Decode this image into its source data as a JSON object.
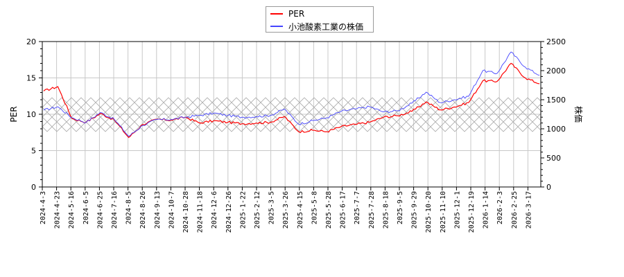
{
  "legend": {
    "items": [
      {
        "label": "PER",
        "color": "#ff0000"
      },
      {
        "label": "小池酸素工業の株価",
        "color": "#4444ff"
      }
    ]
  },
  "axes": {
    "left_title": "PER",
    "right_title": "株価",
    "left_ticks": [
      "0",
      "5",
      "10",
      "15",
      "20"
    ],
    "right_ticks": [
      "0",
      "500",
      "1000",
      "1500",
      "2000",
      "2500"
    ]
  },
  "chart_data": {
    "type": "line",
    "title": "",
    "xlabel": "",
    "ylabel": "PER",
    "ylabel_right": "株価",
    "ylim": [
      0,
      20
    ],
    "ylim_right": [
      0,
      2500
    ],
    "grid": true,
    "legend_position": "top-center",
    "hatched_band_per": [
      7.6,
      12.3
    ],
    "x_tick_labels": [
      "2024-4-3",
      "2024-4-23",
      "2024-5-16",
      "2024-6-5",
      "2024-6-25",
      "2024-7-16",
      "2024-8-5",
      "2024-8-26",
      "2024-9-13",
      "2024-10-7",
      "2024-10-28",
      "2024-11-18",
      "2024-12-6",
      "2024-12-26",
      "2025-1-22",
      "2025-2-12",
      "2025-3-5",
      "2025-3-26",
      "2025-4-15",
      "2025-5-8",
      "2025-5-28",
      "2025-6-17",
      "2025-7-7",
      "2025-7-28",
      "2025-8-18",
      "2025-9-5",
      "2025-9-29",
      "2025-10-20",
      "2025-11-10",
      "2025-12-1",
      "2025-12-19",
      "2026-1-14",
      "2026-2-3",
      "2026-2-25",
      "2026-3-17"
    ],
    "x": [
      "2024-4-3",
      "2024-4-23",
      "2024-5-16",
      "2024-6-5",
      "2024-6-25",
      "2024-7-16",
      "2024-8-5",
      "2024-8-26",
      "2024-9-13",
      "2024-10-7",
      "2024-10-28",
      "2024-11-18",
      "2024-12-6",
      "2024-12-26",
      "2025-1-22",
      "2025-2-12",
      "2025-3-5",
      "2025-3-26",
      "2025-4-15",
      "2025-5-8",
      "2025-5-28",
      "2025-6-17",
      "2025-7-7",
      "2025-7-28",
      "2025-8-18",
      "2025-9-5",
      "2025-9-29",
      "2025-10-20",
      "2025-11-10",
      "2025-12-1",
      "2025-12-19",
      "2026-1-14",
      "2026-2-3",
      "2026-2-25",
      "2026-3-17",
      "2026-4-3"
    ],
    "series": [
      {
        "name": "PER",
        "axis": "left",
        "color": "#ff0000",
        "values": [
          13.2,
          13.8,
          9.4,
          8.9,
          10.1,
          9.2,
          6.8,
          8.6,
          9.3,
          9.2,
          9.6,
          8.8,
          9.1,
          8.9,
          8.7,
          8.8,
          8.9,
          9.7,
          7.6,
          7.8,
          7.6,
          8.3,
          8.6,
          8.9,
          9.6,
          9.8,
          10.4,
          11.7,
          10.6,
          11.0,
          11.6,
          14.6,
          14.5,
          17.0,
          15.0,
          14.2
        ]
      },
      {
        "name": "小池酸素工業の株価",
        "axis": "right",
        "color": "#4444ff",
        "values": [
          1320,
          1380,
          1190,
          1110,
          1280,
          1160,
          870,
          1060,
          1160,
          1160,
          1200,
          1230,
          1270,
          1230,
          1200,
          1210,
          1230,
          1340,
          1080,
          1140,
          1190,
          1300,
          1340,
          1380,
          1290,
          1310,
          1440,
          1630,
          1450,
          1500,
          1560,
          2000,
          1950,
          2320,
          2060,
          1920
        ]
      }
    ]
  }
}
